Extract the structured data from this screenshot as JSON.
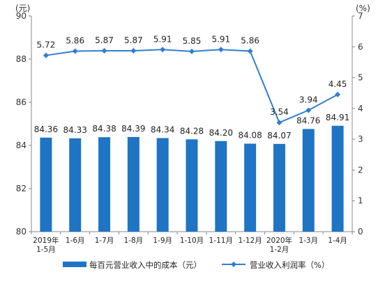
{
  "chart_data": {
    "type": "bar+line",
    "categories": [
      "2019年\n1-5月",
      "1-6月",
      "1-7月",
      "1-8月",
      "1-9月",
      "1-10月",
      "1-11月",
      "1-12月",
      "2020年\n1-2月",
      "1-3月",
      "1-4月"
    ],
    "left_axis": {
      "unit_label": "(元)",
      "ylim": [
        80,
        90
      ],
      "ticks": [
        80,
        82,
        84,
        86,
        88,
        90
      ]
    },
    "right_axis": {
      "unit_label": "(%)",
      "ylim": [
        0,
        7
      ],
      "ticks": [
        0,
        1,
        2,
        3,
        4,
        5,
        6,
        7
      ]
    },
    "series": [
      {
        "name": "每百元营业收入中的成本（元）",
        "type": "bar",
        "axis": "left",
        "color": "#1f74c4",
        "values": [
          84.36,
          84.33,
          84.38,
          84.39,
          84.34,
          84.28,
          84.2,
          84.08,
          84.07,
          84.76,
          84.91
        ],
        "labels": [
          "84.36",
          "84.33",
          "84.38",
          "84.39",
          "84.34",
          "84.28",
          "84.20",
          "84.08",
          "84.07",
          "84.76",
          "84.91"
        ]
      },
      {
        "name": "营业收入利润率（%）",
        "type": "line",
        "axis": "right",
        "color": "#2f7fd0",
        "values": [
          5.72,
          5.86,
          5.87,
          5.87,
          5.91,
          5.85,
          5.91,
          5.86,
          3.54,
          3.94,
          4.45
        ],
        "labels": [
          "5.72",
          "5.86",
          "5.87",
          "5.87",
          "5.91",
          "5.85",
          "5.91",
          "5.86",
          "3.54",
          "3.94",
          "4.45"
        ]
      }
    ],
    "grid": false,
    "legend": "bottom"
  }
}
